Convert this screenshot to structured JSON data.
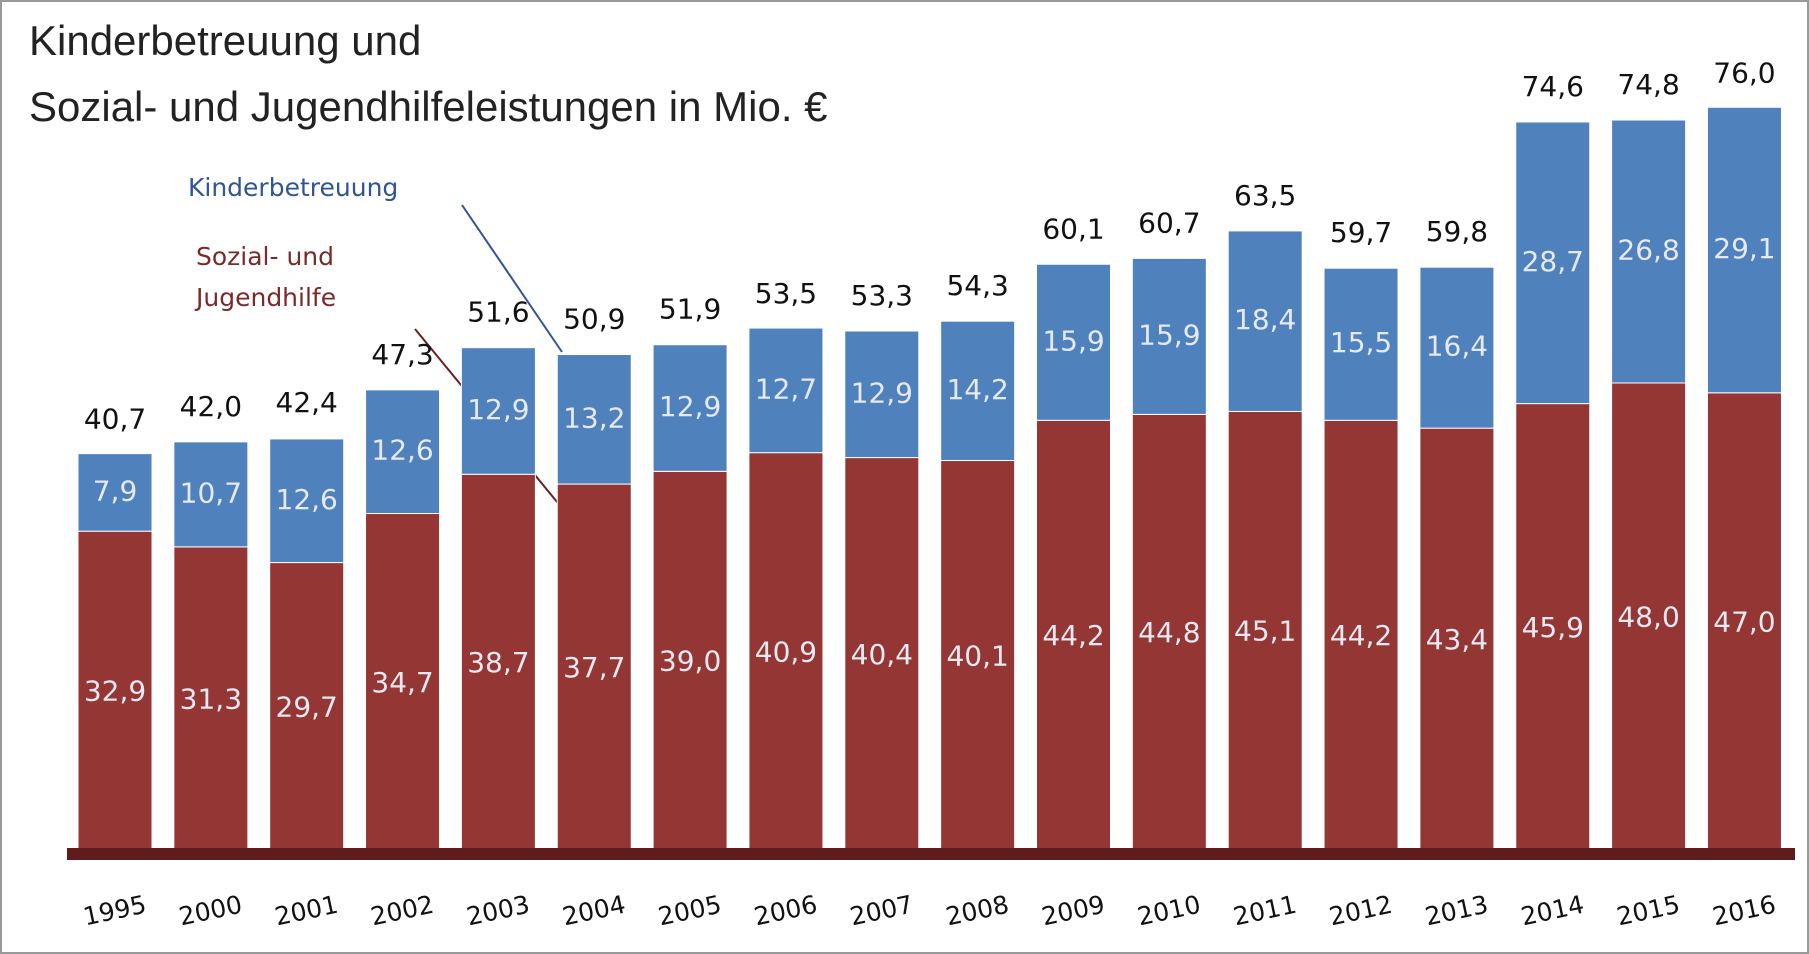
{
  "chart_data": {
    "type": "stacked_bar",
    "title": [
      "Kinderbetreuung und",
      "Sozial- und Jugendhilfeleistungen in Mio. €"
    ],
    "categories": [
      "1995",
      "2000",
      "2001",
      "2002",
      "2003",
      "2004",
      "2005",
      "2006",
      "2007",
      "2008",
      "2009",
      "2010",
      "2011",
      "2012",
      "2013",
      "2014",
      "2015",
      "2016"
    ],
    "series": [
      {
        "name": "Sozial- und Jugendhilfe",
        "color": "#943634",
        "values": [
          32.9,
          31.3,
          29.7,
          34.7,
          38.7,
          37.7,
          39.0,
          40.9,
          40.4,
          40.1,
          44.2,
          44.8,
          45.1,
          44.2,
          43.4,
          45.9,
          48.0,
          47.0
        ],
        "value_labels": [
          "32,9",
          "31,3",
          "29,7",
          "34,7",
          "38,7",
          "37,7",
          "39,0",
          "40,9",
          "40,4",
          "40,1",
          "44,2",
          "44,8",
          "45,1",
          "44,2",
          "43,4",
          "45,9",
          "48,0",
          "47,0"
        ]
      },
      {
        "name": "Kinderbetreuung",
        "color": "#4f81bd",
        "values": [
          7.9,
          10.7,
          12.6,
          12.6,
          12.9,
          13.2,
          12.9,
          12.7,
          12.9,
          14.2,
          15.9,
          15.9,
          18.4,
          15.5,
          16.4,
          28.7,
          26.8,
          29.1
        ],
        "value_labels": [
          "7,9",
          "10,7",
          "12,6",
          "12,6",
          "12,9",
          "13,2",
          "12,9",
          "12,7",
          "12,9",
          "14,2",
          "15,9",
          "15,9",
          "18,4",
          "15,5",
          "16,4",
          "28,7",
          "26,8",
          "29,1"
        ]
      }
    ],
    "totals": [
      40.7,
      42.0,
      42.4,
      47.3,
      51.6,
      50.9,
      51.9,
      53.5,
      53.3,
      54.3,
      60.1,
      60.7,
      63.5,
      59.7,
      59.8,
      74.6,
      74.8,
      76.0
    ],
    "total_labels": [
      "40,7",
      "42,0",
      "42,4",
      "47,3",
      "51,6",
      "50,9",
      "51,9",
      "53,5",
      "53,3",
      "54,3",
      "60,1",
      "60,7",
      "63,5",
      "59,7",
      "59,8",
      "74,6",
      "74,8",
      "76,0"
    ],
    "ylim": [
      0,
      80
    ]
  }
}
